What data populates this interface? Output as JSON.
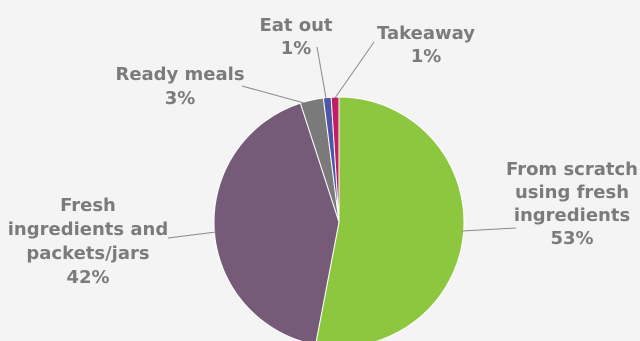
{
  "chart_data": {
    "type": "pie",
    "title": "",
    "slices": [
      {
        "label_lines": [
          "From scratch",
          "using fresh",
          "ingredients"
        ],
        "value": 53,
        "pct_label": "53%",
        "color": "#8dc63f"
      },
      {
        "label_lines": [
          "Fresh",
          "ingredients and",
          "packets/jars"
        ],
        "value": 42,
        "pct_label": "42%",
        "color": "#765b78"
      },
      {
        "label_lines": [
          "Ready meals"
        ],
        "value": 3,
        "pct_label": "3%",
        "color": "#7a7a7a"
      },
      {
        "label_lines": [
          "Eat out"
        ],
        "value": 1,
        "pct_label": "1%",
        "color": "#4f56a8"
      },
      {
        "label_lines": [
          "Takeaway"
        ],
        "value": 1,
        "pct_label": "1%",
        "color": "#c21e68"
      }
    ],
    "legend": "none",
    "slice_border_color": "#ffffff"
  }
}
